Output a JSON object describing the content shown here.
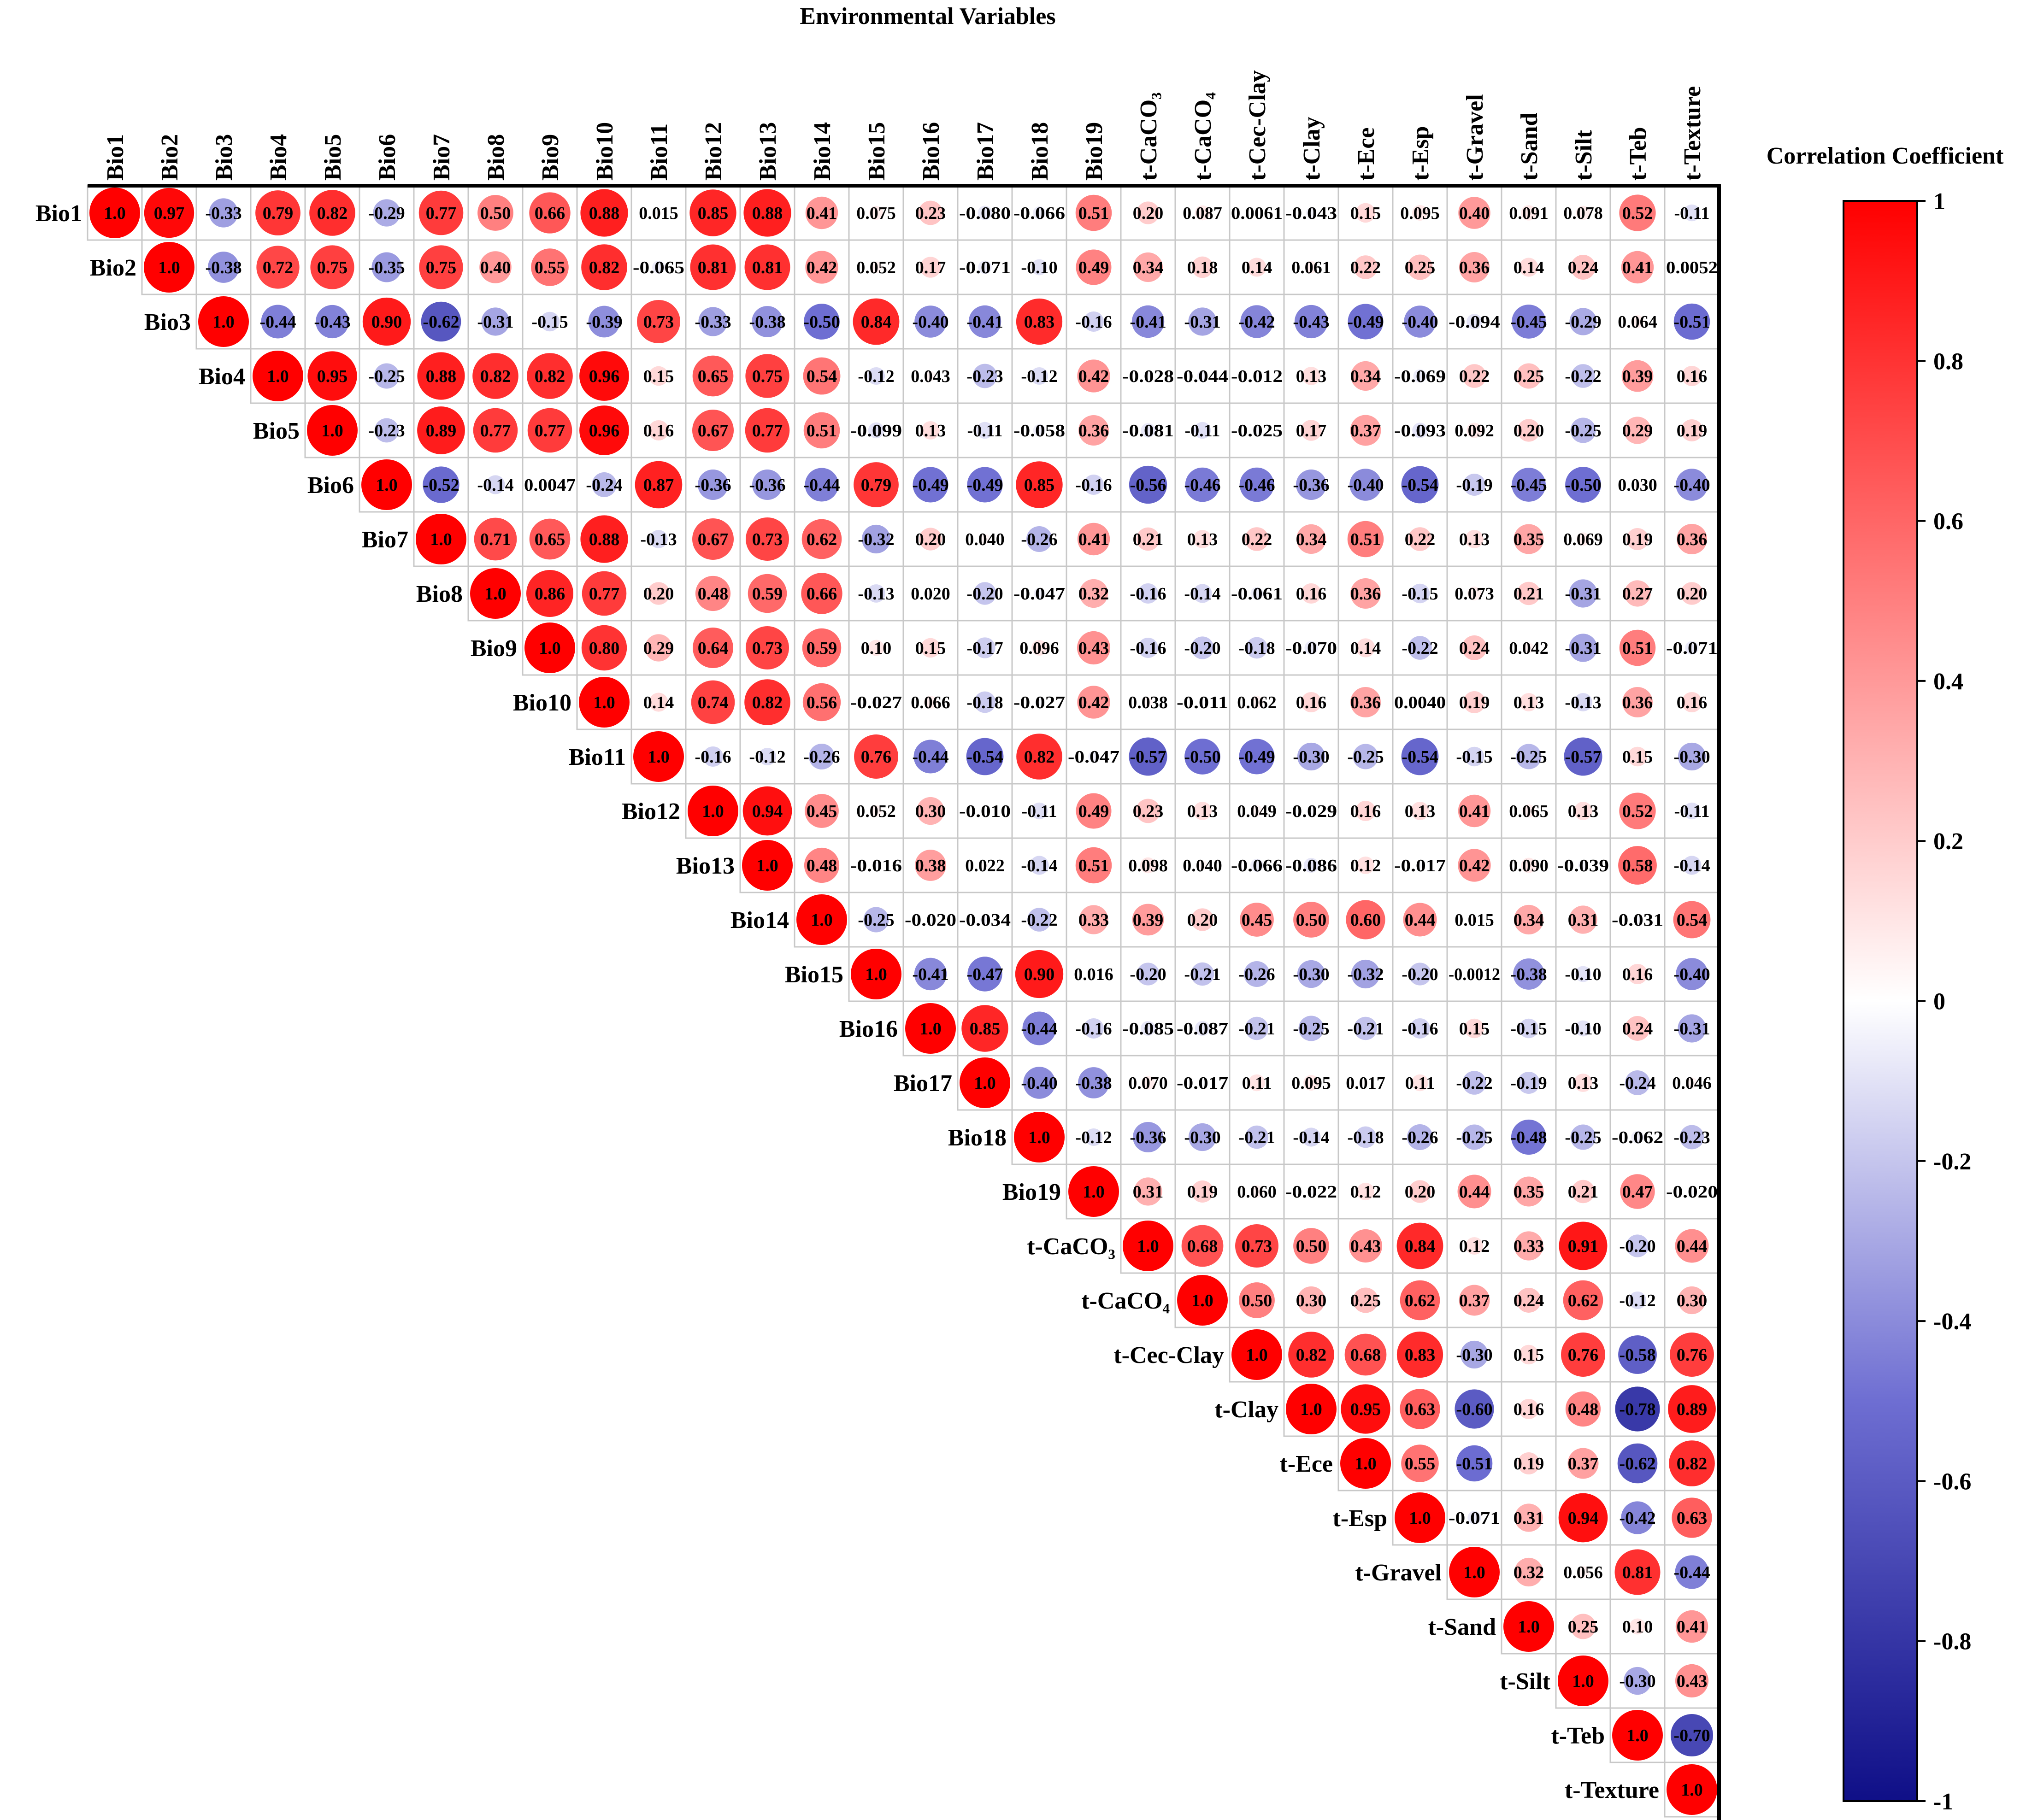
{
  "chart_data": {
    "type": "heatmap",
    "title": "Environmental Variables",
    "colorbar": {
      "title": "Correlation Coefficient",
      "range": [
        -1,
        1
      ],
      "ticks": [
        "1",
        "0.8",
        "0.6",
        "0.4",
        "0.2",
        "0",
        "-0.2",
        "-0.4",
        "-0.6",
        "-0.8",
        "-1"
      ],
      "tick_values": [
        1,
        0.8,
        0.6,
        0.4,
        0.2,
        0,
        -0.2,
        -0.4,
        -0.6,
        -0.8,
        -1
      ],
      "colors": {
        "positive": "#ff0000",
        "zero": "#ffffff",
        "mid_negative": "#6e6ed2",
        "negative": "#0f0f87"
      }
    },
    "variables": [
      "Bio1",
      "Bio2",
      "Bio3",
      "Bio4",
      "Bio5",
      "Bio6",
      "Bio7",
      "Bio8",
      "Bio9",
      "Bio10",
      "Bio11",
      "Bio12",
      "Bio13",
      "Bio14",
      "Bio15",
      "Bio16",
      "Bio17",
      "Bio18",
      "Bio19",
      "t-CaCO₃",
      "t-CaCO₄",
      "t-Cec-Clay",
      "t-Clay",
      "t-Ece",
      "t-Esp",
      "t-Gravel",
      "t-Sand",
      "t-Silt",
      "t-Teb",
      "t-Texture"
    ],
    "upper_triangle_rows": [
      [
        "1.0",
        "0.97",
        "-0.33",
        "0.79",
        "0.82",
        "-0.29",
        "0.77",
        "0.50",
        "0.66",
        "0.88",
        "0.015",
        "0.85",
        "0.88",
        "0.41",
        "0.075",
        "0.23",
        "-0.080",
        "-0.066",
        "0.51",
        "0.20",
        "0.087",
        "0.0061",
        "-0.043",
        "0.15",
        "0.095",
        "0.40",
        "0.091",
        "0.078",
        "0.52",
        "-0.11"
      ],
      [
        "1.0",
        "-0.38",
        "0.72",
        "0.75",
        "-0.35",
        "0.75",
        "0.40",
        "0.55",
        "0.82",
        "-0.065",
        "0.81",
        "0.81",
        "0.42",
        "0.052",
        "0.17",
        "-0.071",
        "-0.10",
        "0.49",
        "0.34",
        "0.18",
        "0.14",
        "0.061",
        "0.22",
        "0.25",
        "0.36",
        "0.14",
        "0.24",
        "0.41",
        "0.0052"
      ],
      [
        "1.0",
        "-0.44",
        "-0.43",
        "0.90",
        "-0.62",
        "-0.31",
        "-0.15",
        "-0.39",
        "0.73",
        "-0.33",
        "-0.38",
        "-0.50",
        "0.84",
        "-0.40",
        "-0.41",
        "0.83",
        "-0.16",
        "-0.41",
        "-0.31",
        "-0.42",
        "-0.43",
        "-0.49",
        "-0.40",
        "-0.094",
        "-0.45",
        "-0.29",
        "0.064",
        "-0.51"
      ],
      [
        "1.0",
        "0.95",
        "-0.25",
        "0.88",
        "0.82",
        "0.82",
        "0.96",
        "0.15",
        "0.65",
        "0.75",
        "0.54",
        "-0.12",
        "0.043",
        "-0.23",
        "-0.12",
        "0.42",
        "-0.028",
        "-0.044",
        "-0.012",
        "0.13",
        "0.34",
        "-0.069",
        "0.22",
        "0.25",
        "-0.22",
        "0.39",
        "0.16"
      ],
      [
        "1.0",
        "-0.23",
        "0.89",
        "0.77",
        "0.77",
        "0.96",
        "0.16",
        "0.67",
        "0.77",
        "0.51",
        "-0.099",
        "0.13",
        "-0.11",
        "-0.058",
        "0.36",
        "-0.081",
        "-0.11",
        "-0.025",
        "0.17",
        "0.37",
        "-0.093",
        "0.092",
        "0.20",
        "-0.25",
        "0.29",
        "0.19"
      ],
      [
        "1.0",
        "-0.52",
        "-0.14",
        "0.0047",
        "-0.24",
        "0.87",
        "-0.36",
        "-0.36",
        "-0.44",
        "0.79",
        "-0.49",
        "-0.49",
        "0.85",
        "-0.16",
        "-0.56",
        "-0.46",
        "-0.46",
        "-0.36",
        "-0.40",
        "-0.54",
        "-0.19",
        "-0.45",
        "-0.50",
        "0.030",
        "-0.40"
      ],
      [
        "1.0",
        "0.71",
        "0.65",
        "0.88",
        "-0.13",
        "0.67",
        "0.73",
        "0.62",
        "-0.32",
        "0.20",
        "0.040",
        "-0.26",
        "0.41",
        "0.21",
        "0.13",
        "0.22",
        "0.34",
        "0.51",
        "0.22",
        "0.13",
        "0.35",
        "0.069",
        "0.19",
        "0.36"
      ],
      [
        "1.0",
        "0.86",
        "0.77",
        "0.20",
        "0.48",
        "0.59",
        "0.66",
        "-0.13",
        "0.020",
        "-0.20",
        "-0.047",
        "0.32",
        "-0.16",
        "-0.14",
        "-0.061",
        "0.16",
        "0.36",
        "-0.15",
        "0.073",
        "0.21",
        "-0.31",
        "0.27",
        "0.20"
      ],
      [
        "1.0",
        "0.80",
        "0.29",
        "0.64",
        "0.73",
        "0.59",
        "0.10",
        "0.15",
        "-0.17",
        "0.096",
        "0.43",
        "-0.16",
        "-0.20",
        "-0.18",
        "-0.070",
        "0.14",
        "-0.22",
        "0.24",
        "0.042",
        "-0.31",
        "0.51",
        "-0.071"
      ],
      [
        "1.0",
        "0.14",
        "0.74",
        "0.82",
        "0.56",
        "-0.027",
        "0.066",
        "-0.18",
        "-0.027",
        "0.42",
        "0.038",
        "-0.011",
        "0.062",
        "0.16",
        "0.36",
        "0.0040",
        "0.19",
        "0.13",
        "-0.13",
        "0.36",
        "0.16"
      ],
      [
        "1.0",
        "-0.16",
        "-0.12",
        "-0.26",
        "0.76",
        "-0.44",
        "-0.54",
        "0.82",
        "-0.047",
        "-0.57",
        "-0.50",
        "-0.49",
        "-0.30",
        "-0.25",
        "-0.54",
        "-0.15",
        "-0.25",
        "-0.57",
        "0.15",
        "-0.30"
      ],
      [
        "1.0",
        "0.94",
        "0.45",
        "0.052",
        "0.30",
        "-0.010",
        "-0.11",
        "0.49",
        "0.23",
        "0.13",
        "0.049",
        "-0.029",
        "0.16",
        "0.13",
        "0.41",
        "0.065",
        "0.13",
        "0.52",
        "-0.11"
      ],
      [
        "1.0",
        "0.48",
        "-0.016",
        "0.38",
        "0.022",
        "-0.14",
        "0.51",
        "0.098",
        "0.040",
        "-0.066",
        "-0.086",
        "0.12",
        "-0.017",
        "0.42",
        "0.090",
        "-0.039",
        "0.58",
        "-0.14"
      ],
      [
        "1.0",
        "-0.25",
        "-0.020",
        "-0.034",
        "-0.22",
        "0.33",
        "0.39",
        "0.20",
        "0.45",
        "0.50",
        "0.60",
        "0.44",
        "0.015",
        "0.34",
        "0.31",
        "-0.031",
        "0.54"
      ],
      [
        "1.0",
        "-0.41",
        "-0.47",
        "0.90",
        "0.016",
        "-0.20",
        "-0.21",
        "-0.26",
        "-0.30",
        "-0.32",
        "-0.20",
        "-0.0012",
        "-0.38",
        "-0.10",
        "0.16",
        "-0.40"
      ],
      [
        "1.0",
        "0.85",
        "-0.44",
        "-0.16",
        "-0.085",
        "-0.087",
        "-0.21",
        "-0.25",
        "-0.21",
        "-0.16",
        "0.15",
        "-0.15",
        "-0.10",
        "0.24",
        "-0.31"
      ],
      [
        "1.0",
        "-0.40",
        "-0.38",
        "0.070",
        "-0.017",
        "0.11",
        "0.095",
        "0.017",
        "0.11",
        "-0.22",
        "-0.19",
        "0.13",
        "-0.24",
        "0.046"
      ],
      [
        "1.0",
        "-0.12",
        "-0.36",
        "-0.30",
        "-0.21",
        "-0.14",
        "-0.18",
        "-0.26",
        "-0.25",
        "-0.48",
        "-0.25",
        "-0.062",
        "-0.23"
      ],
      [
        "1.0",
        "0.31",
        "0.19",
        "0.060",
        "-0.022",
        "0.12",
        "0.20",
        "0.44",
        "0.35",
        "0.21",
        "0.47",
        "-0.020"
      ],
      [
        "1.0",
        "0.68",
        "0.73",
        "0.50",
        "0.43",
        "0.84",
        "0.12",
        "0.33",
        "0.91",
        "-0.20",
        "0.44"
      ],
      [
        "1.0",
        "0.50",
        "0.30",
        "0.25",
        "0.62",
        "0.37",
        "0.24",
        "0.62",
        "-0.12",
        "0.30"
      ],
      [
        "1.0",
        "0.82",
        "0.68",
        "0.83",
        "-0.30",
        "0.15",
        "0.76",
        "-0.58",
        "0.76"
      ],
      [
        "1.0",
        "0.95",
        "0.63",
        "-0.60",
        "0.16",
        "0.48",
        "-0.78",
        "0.89"
      ],
      [
        "1.0",
        "0.55",
        "-0.51",
        "0.19",
        "0.37",
        "-0.62",
        "0.82"
      ],
      [
        "1.0",
        "-0.071",
        "0.31",
        "0.94",
        "-0.42",
        "0.63"
      ],
      [
        "1.0",
        "0.32",
        "0.056",
        "0.81",
        "-0.44"
      ],
      [
        "1.0",
        "0.25",
        "0.10",
        "0.41"
      ],
      [
        "1.0",
        "-0.30",
        "0.43"
      ],
      [
        "1.0",
        "-0.70"
      ],
      [
        "1.0"
      ]
    ]
  }
}
